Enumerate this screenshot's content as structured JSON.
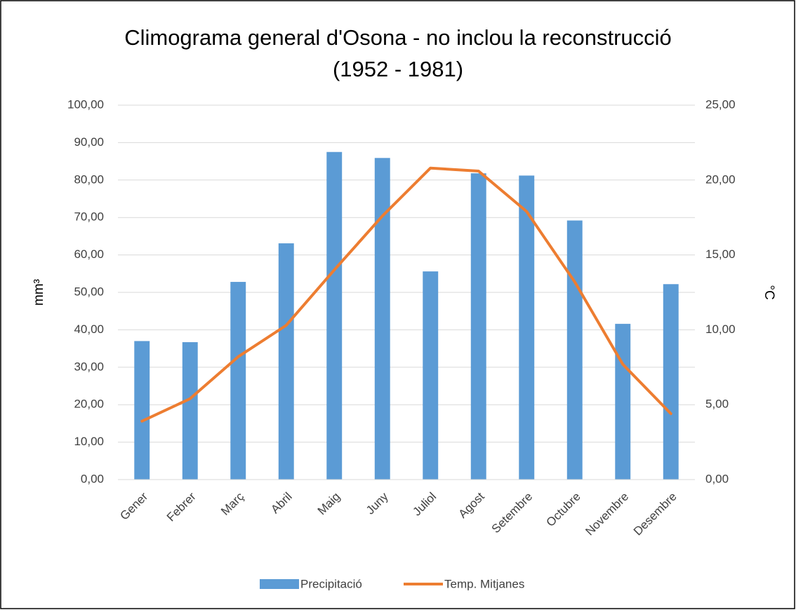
{
  "chart_data": {
    "type": "bar+line",
    "title": [
      "Climograma general d'Osona - no inclou la reconstrucció",
      "(1952 - 1981)"
    ],
    "y_label": "mm³",
    "y2_label": "°C",
    "categories": [
      "Gener",
      "Febrer",
      "Març",
      "Abril",
      "Maig",
      "Juny",
      "Juliol",
      "Agost",
      "Setembre",
      "Octubre",
      "Novembre",
      "Desembre"
    ],
    "series": [
      {
        "name": "Precipitació",
        "type": "bar",
        "color": "#5b9bd5",
        "values": [
          37.0,
          36.7,
          52.8,
          63.1,
          87.5,
          85.9,
          55.6,
          81.8,
          81.2,
          69.2,
          41.6,
          52.2
        ]
      },
      {
        "name": "Temp. Mitjanes",
        "type": "line",
        "axis": "y2",
        "color": "#ed7d31",
        "values": [
          3.9,
          5.4,
          8.2,
          10.3,
          14.0,
          17.6,
          20.8,
          20.6,
          17.9,
          13.2,
          7.7,
          4.4
        ]
      }
    ],
    "ylim": [
      0,
      100
    ],
    "yticks": [
      {
        "value": 0,
        "label": "0,00"
      },
      {
        "value": 10,
        "label": "10,00"
      },
      {
        "value": 20,
        "label": "20,00"
      },
      {
        "value": 30,
        "label": "30,00"
      },
      {
        "value": 40,
        "label": "40,00"
      },
      {
        "value": 50,
        "label": "50,00"
      },
      {
        "value": 60,
        "label": "60,00"
      },
      {
        "value": 70,
        "label": "70,00"
      },
      {
        "value": 80,
        "label": "80,00"
      },
      {
        "value": 90,
        "label": "90,00"
      },
      {
        "value": 100,
        "label": "100,00"
      }
    ],
    "y2lim": [
      0,
      25
    ],
    "y2ticks": [
      {
        "value": 0,
        "label": "0,00"
      },
      {
        "value": 5,
        "label": "5,00"
      },
      {
        "value": 10,
        "label": "10,00"
      },
      {
        "value": 15,
        "label": "15,00"
      },
      {
        "value": 20,
        "label": "20,00"
      },
      {
        "value": 25,
        "label": "25,00"
      }
    ],
    "grid": true,
    "legend": "bottom"
  }
}
